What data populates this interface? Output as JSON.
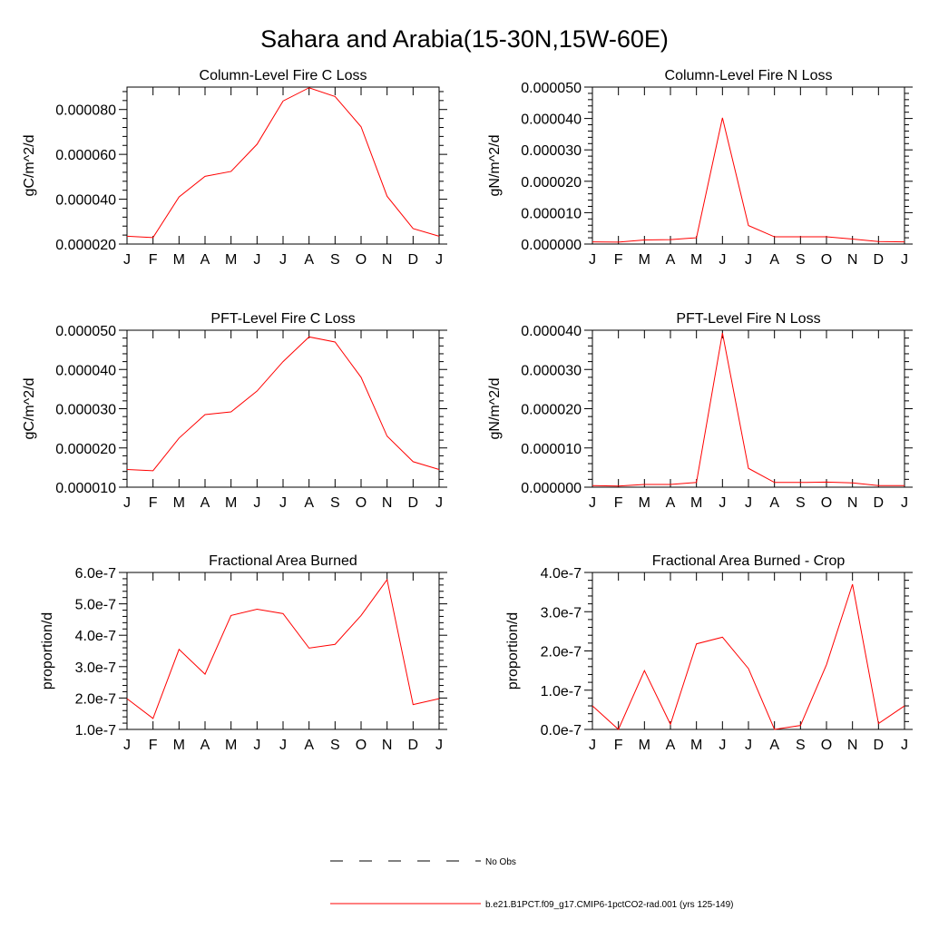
{
  "figure": {
    "title": "Sahara and Arabia(15-30N,15W-60E)"
  },
  "legend": [
    {
      "label": "No Obs",
      "color": "#000000",
      "dashed": true
    },
    {
      "label": "b.e21.B1PCT.f09_g17.CMIP6-1pctCO2-rad.001 (yrs 125-149)",
      "color": "#ff0000",
      "dashed": false
    }
  ],
  "chart_data": [
    {
      "type": "line",
      "title": "Column-Level Fire C Loss",
      "xlabel": "",
      "ylabel": "gC/m^2/d",
      "categories": [
        "J",
        "F",
        "M",
        "A",
        "M",
        "J",
        "J",
        "A",
        "S",
        "O",
        "N",
        "D",
        "J"
      ],
      "ylim": [
        2e-05,
        9e-05
      ],
      "yticks": [
        2e-05,
        4e-05,
        6e-05,
        8e-05
      ],
      "ytick_labels": [
        "0.000020",
        "0.000040",
        "0.000060",
        "0.000080"
      ],
      "series": [
        {
          "color": "#ff0000",
          "values": [
            2.35e-05,
            2.29e-05,
            4.1e-05,
            5.02e-05,
            5.24e-05,
            6.45e-05,
            8.38e-05,
            8.97e-05,
            8.58e-05,
            7.23e-05,
            4.13e-05,
            2.69e-05,
            2.35e-05
          ]
        }
      ]
    },
    {
      "type": "line",
      "title": "Column-Level Fire N Loss",
      "xlabel": "",
      "ylabel": "gN/m^2/d",
      "categories": [
        "J",
        "F",
        "M",
        "A",
        "M",
        "J",
        "J",
        "A",
        "S",
        "O",
        "N",
        "D",
        "J"
      ],
      "ylim": [
        0.0,
        5e-05
      ],
      "yticks": [
        0.0,
        1e-05,
        2e-05,
        3e-05,
        4e-05,
        5e-05
      ],
      "ytick_labels": [
        "0.000000",
        "0.000010",
        "0.000020",
        "0.000030",
        "0.000040",
        "0.000050"
      ],
      "series": [
        {
          "color": "#ff0000",
          "values": [
            7e-07,
            6e-07,
            1.3e-06,
            1.4e-06,
            2e-06,
            4.02e-05,
            5.9e-06,
            2.3e-06,
            2.3e-06,
            2.3e-06,
            1.6e-06,
            8e-07,
            7e-07
          ]
        }
      ]
    },
    {
      "type": "line",
      "title": "PFT-Level Fire C Loss",
      "xlabel": "",
      "ylabel": "gC/m^2/d",
      "categories": [
        "J",
        "F",
        "M",
        "A",
        "M",
        "J",
        "J",
        "A",
        "S",
        "O",
        "N",
        "D",
        "J"
      ],
      "ylim": [
        1e-05,
        5e-05
      ],
      "yticks": [
        1e-05,
        2e-05,
        3e-05,
        4e-05,
        5e-05
      ],
      "ytick_labels": [
        "0.000010",
        "0.000020",
        "0.000030",
        "0.000040",
        "0.000050"
      ],
      "series": [
        {
          "color": "#ff0000",
          "values": [
            1.45e-05,
            1.42e-05,
            2.25e-05,
            2.85e-05,
            2.92e-05,
            3.45e-05,
            4.2e-05,
            4.83e-05,
            4.7e-05,
            3.8e-05,
            2.3e-05,
            1.65e-05,
            1.45e-05
          ]
        }
      ]
    },
    {
      "type": "line",
      "title": "PFT-Level Fire N Loss",
      "xlabel": "",
      "ylabel": "gN/m^2/d",
      "categories": [
        "J",
        "F",
        "M",
        "A",
        "M",
        "J",
        "J",
        "A",
        "S",
        "O",
        "N",
        "D",
        "J"
      ],
      "ylim": [
        0.0,
        4e-05
      ],
      "yticks": [
        0.0,
        1e-05,
        2e-05,
        3e-05,
        4e-05
      ],
      "ytick_labels": [
        "0.000000",
        "0.000010",
        "0.000020",
        "0.000030",
        "0.000040"
      ],
      "series": [
        {
          "color": "#ff0000",
          "values": [
            4e-07,
            3e-07,
            7e-07,
            7e-07,
            1.2e-06,
            3.93e-05,
            4.8e-06,
            1.2e-06,
            1.2e-06,
            1.3e-06,
            1.1e-06,
            4e-07,
            4e-07
          ]
        }
      ]
    },
    {
      "type": "line",
      "title": "Fractional Area Burned",
      "xlabel": "",
      "ylabel": "proportion/d",
      "categories": [
        "J",
        "F",
        "M",
        "A",
        "M",
        "J",
        "J",
        "A",
        "S",
        "O",
        "N",
        "D",
        "J"
      ],
      "ylim": [
        1e-07,
        6e-07
      ],
      "yticks": [
        1e-07,
        2e-07,
        3e-07,
        4e-07,
        5e-07,
        6e-07
      ],
      "ytick_labels": [
        "1.0e-7",
        "2.0e-7",
        "3.0e-7",
        "4.0e-7",
        "5.0e-7",
        "6.0e-7"
      ],
      "series": [
        {
          "color": "#ff0000",
          "values": [
            1.98e-07,
            1.35e-07,
            3.55e-07,
            2.76e-07,
            4.63e-07,
            4.83e-07,
            4.69e-07,
            3.59e-07,
            3.71e-07,
            4.63e-07,
            5.77e-07,
            1.79e-07,
            1.98e-07
          ]
        }
      ]
    },
    {
      "type": "line",
      "title": "Fractional Area Burned - Crop",
      "xlabel": "",
      "ylabel": "proportion/d",
      "categories": [
        "J",
        "F",
        "M",
        "A",
        "M",
        "J",
        "J",
        "A",
        "S",
        "O",
        "N",
        "D",
        "J"
      ],
      "ylim": [
        0.0,
        4e-07
      ],
      "yticks": [
        0.0,
        1e-07,
        2e-07,
        3e-07,
        4e-07
      ],
      "ytick_labels": [
        "0.0e-7",
        "1.0e-7",
        "2.0e-7",
        "3.0e-7",
        "4.0e-7"
      ],
      "series": [
        {
          "color": "#ff0000",
          "values": [
            6e-08,
            0.0,
            1.5e-07,
            1.3e-08,
            2.18e-07,
            2.35e-07,
            1.55e-07,
            0.0,
            1e-08,
            1.65e-07,
            3.7e-07,
            1.5e-08,
            6e-08
          ]
        }
      ]
    }
  ]
}
